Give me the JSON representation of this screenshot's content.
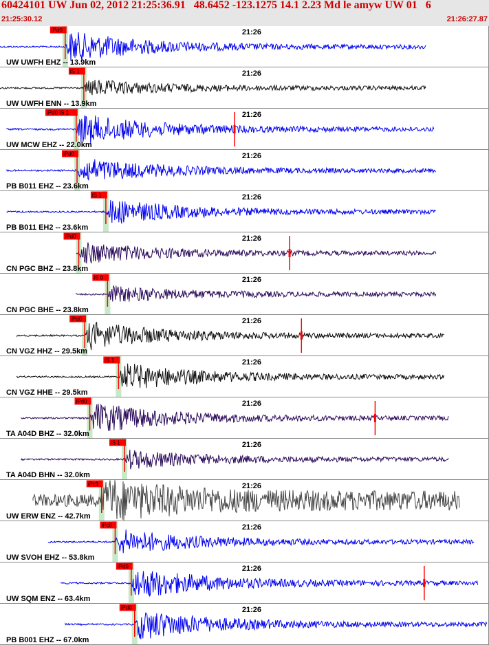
{
  "header": {
    "title": "60424101 UW Jun 02, 2012 21:25:36.91   48.6452 -123.1275 14.1 2.23 Md le amyw UW 01   6",
    "start_time": "21:25:30.12",
    "end_time": "21:26:27.87"
  },
  "colors": {
    "header_bg": "#e6e6e6",
    "header_text": "#cc0000",
    "pick_marker": "#ff0000",
    "window_band": "#b9e3b9",
    "blue_trace": "#0000ee",
    "dark_trace": "#111111",
    "purple_trace": "#2a0a5a",
    "gray_trace": "#444444"
  },
  "chart_data": {
    "type": "seismogram",
    "x_range_sec": [
      0,
      57.75
    ],
    "tick": {
      "label": "21:26",
      "t_sec": 29.88
    },
    "traces": [
      {
        "station": "UW UWFH EHZ -- 13.9km",
        "pick": "iPd0",
        "pick_t": 7.7,
        "color": "blue",
        "start_t": 0,
        "end_t": 50.3,
        "amp": 1.0,
        "end_pick_t": null
      },
      {
        "station": "UW UWFH ENN -- 13.9km",
        "pick": "iS 1",
        "pick_t": 9.9,
        "color": "dark",
        "start_t": 0,
        "end_t": 50.3,
        "amp": 0.5,
        "end_pick_t": null
      },
      {
        "station": "UW MCW EHZ -- 22.0km",
        "pick": "iPd0 iS 1",
        "pick_t": 9.0,
        "color": "blue",
        "start_t": 0.8,
        "end_t": 51.3,
        "amp": 1.0,
        "end_pick_t": 27.7
      },
      {
        "station": "PB B011 EHZ -- 23.6km",
        "pick": "iPd0",
        "pick_t": 9.1,
        "color": "blue",
        "start_t": 0.8,
        "end_t": 51.5,
        "amp": 0.8,
        "end_pick_t": null
      },
      {
        "station": "PB B011 EH2 -- 23.6km",
        "pick": "iS 1",
        "pick_t": 12.5,
        "color": "blue",
        "start_t": 0.8,
        "end_t": 51.5,
        "amp": 0.8,
        "end_pick_t": null
      },
      {
        "station": "CN PGC BHZ -- 23.8km",
        "pick": "iPd0",
        "pick_t": 9.3,
        "color": "purple",
        "start_t": 9.0,
        "end_t": 51.5,
        "amp": 0.7,
        "end_pick_t": 34.2
      },
      {
        "station": "CN PGC BHE -- 23.8km",
        "pick": "iS 0",
        "pick_t": 12.7,
        "color": "purple",
        "start_t": 9.0,
        "end_t": 51.5,
        "amp": 0.5,
        "end_pick_t": null
      },
      {
        "station": "CN VGZ HHZ -- 29.5km",
        "pick": "iPd0",
        "pick_t": 10.0,
        "color": "dark",
        "start_t": 2.0,
        "end_t": 52.5,
        "amp": 0.9,
        "end_pick_t": 35.6
      },
      {
        "station": "CN VGZ HHE -- 29.5km",
        "pick": "iS 1",
        "pick_t": 14.0,
        "color": "dark",
        "start_t": 2.0,
        "end_t": 52.5,
        "amp": 0.9,
        "end_pick_t": null
      },
      {
        "station": "TA A04D BHZ -- 32.0km",
        "pick": "iPd0",
        "pick_t": 10.6,
        "color": "purple",
        "start_t": 2.5,
        "end_t": 53.0,
        "amp": 1.0,
        "end_pick_t": 44.3
      },
      {
        "station": "TA A04D BHN -- 32.0km",
        "pick": "iS 1",
        "pick_t": 14.7,
        "color": "purple",
        "start_t": 2.5,
        "end_t": 53.0,
        "amp": 0.6,
        "end_pick_t": null
      },
      {
        "station": "UW ERW ENZ -- 42.7km",
        "pick": "iPc1",
        "pick_t": 12.0,
        "color": "gray",
        "start_t": 3.9,
        "end_t": 54.3,
        "amp": 1.0,
        "end_pick_t": null
      },
      {
        "station": "UW SVOH EHZ -- 53.8km",
        "pick": "iPc0",
        "pick_t": 13.6,
        "color": "blue",
        "start_t": 5.7,
        "end_t": 56.0,
        "amp": 0.8,
        "end_pick_t": null
      },
      {
        "station": "UW SQM ENZ -- 63.4km",
        "pick": "iPd0",
        "pick_t": 15.5,
        "color": "blue",
        "start_t": 7.2,
        "end_t": 56.5,
        "amp": 1.0,
        "end_pick_t": 50.1
      },
      {
        "station": "PB B001 EHZ -- 67.0km",
        "pick": "iPd0",
        "pick_t": 15.9,
        "color": "blue",
        "start_t": 7.7,
        "end_t": 57.5,
        "amp": 1.0,
        "end_pick_t": null
      }
    ]
  }
}
